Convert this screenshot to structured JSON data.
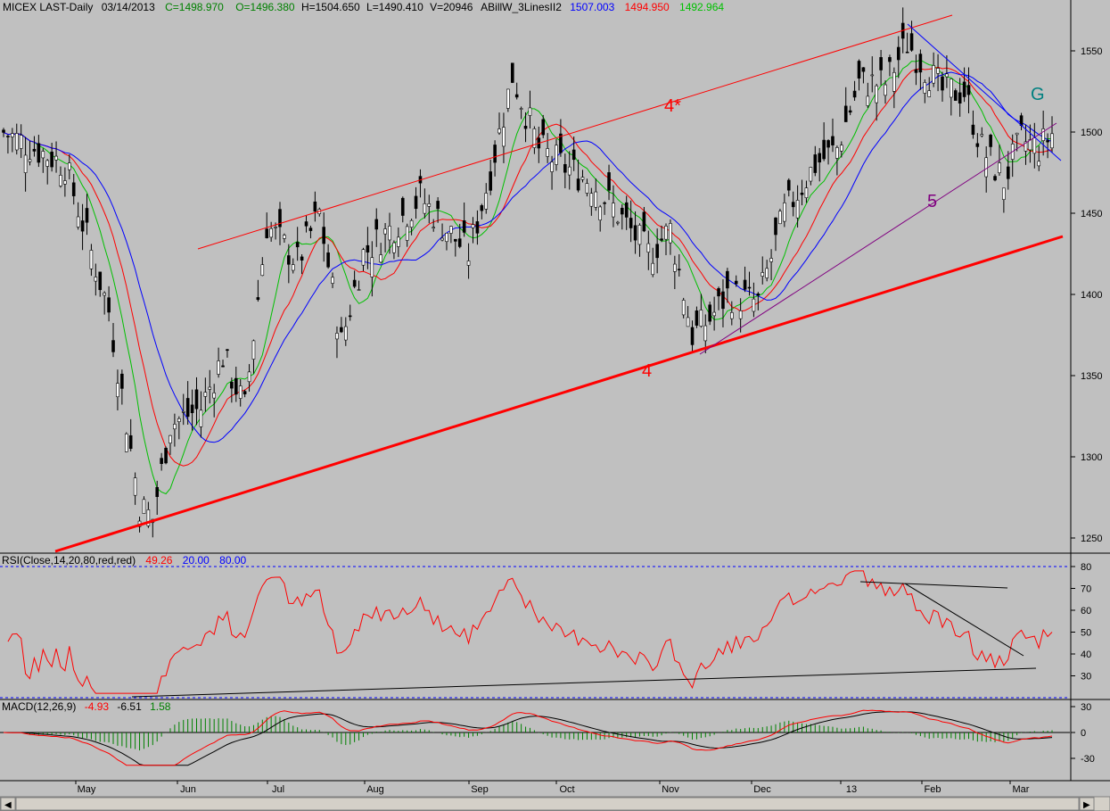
{
  "header": {
    "symbol": "MICEX LAST-Daily",
    "date": "03/14/2013",
    "close": "C=1498.970",
    "open": "O=1496.380",
    "high": "H=1504.650",
    "low": "L=1490.410",
    "volume": "V=20946",
    "indicator": "ABillW_3LinesII2",
    "line_blue": "1507.003",
    "line_red": "1494.950",
    "line_green": "1492.964"
  },
  "colors": {
    "background": "#c0c0c0",
    "line_blue": "#0000ff",
    "line_red": "#ff0000",
    "line_green": "#00c000",
    "annotation_red": "#ff0000",
    "annotation_purple": "#800080",
    "annotation_teal": "#008080",
    "macd_hist": "#008000"
  },
  "chart_data": [
    {
      "type": "candlestick",
      "name": "price",
      "ylim": [
        1230,
        1580
      ],
      "yticks": [
        1250,
        1300,
        1350,
        1400,
        1450,
        1500,
        1550
      ],
      "x_labels": [
        "May",
        "Jun",
        "Jul",
        "Aug",
        "Sep",
        "Oct",
        "Nov",
        "Dec",
        "13",
        "Feb",
        "Mar"
      ],
      "bars_count": 240,
      "close_anchors": [
        [
          0,
          1500
        ],
        [
          14,
          1480
        ],
        [
          24,
          1390
        ],
        [
          31,
          1270
        ],
        [
          34,
          1262
        ],
        [
          38,
          1320
        ],
        [
          45,
          1330
        ],
        [
          50,
          1362
        ],
        [
          55,
          1330
        ],
        [
          60,
          1443
        ],
        [
          67,
          1420
        ],
        [
          72,
          1450
        ],
        [
          77,
          1370
        ],
        [
          82,
          1425
        ],
        [
          90,
          1445
        ],
        [
          95,
          1460
        ],
        [
          101,
          1440
        ],
        [
          106,
          1425
        ],
        [
          111,
          1475
        ],
        [
          116,
          1535
        ],
        [
          122,
          1490
        ],
        [
          127,
          1480
        ],
        [
          134,
          1470
        ],
        [
          140,
          1450
        ],
        [
          147,
          1425
        ],
        [
          152,
          1440
        ],
        [
          157,
          1375
        ],
        [
          161,
          1385
        ],
        [
          165,
          1400
        ],
        [
          172,
          1395
        ],
        [
          178,
          1450
        ],
        [
          185,
          1480
        ],
        [
          190,
          1490
        ],
        [
          195,
          1530
        ],
        [
          201,
          1530
        ],
        [
          206,
          1555
        ],
        [
          210,
          1540
        ],
        [
          214,
          1525
        ],
        [
          219,
          1525
        ],
        [
          223,
          1490
        ],
        [
          228,
          1470
        ],
        [
          232,
          1495
        ],
        [
          236,
          1490
        ],
        [
          239,
          1499
        ]
      ],
      "annotations": [
        {
          "label": "4*",
          "color": "#ff0000"
        },
        {
          "label": "4",
          "color": "#ff0000"
        },
        {
          "label": "5",
          "color": "#800080"
        },
        {
          "label": "G",
          "color": "#008080"
        }
      ]
    },
    {
      "type": "line",
      "name": "RSI",
      "header": "RSI(Close,14,20,80,red,red)",
      "value": "49.26",
      "level_low": "20.00",
      "level_high": "80.00",
      "ylim": [
        20,
        80
      ],
      "yticks": [
        30,
        40,
        50,
        60,
        70,
        80
      ]
    },
    {
      "type": "line",
      "name": "MACD",
      "header": "MACD(12,26,9)",
      "values_text": [
        "-4.93",
        "-6.51",
        "1.58"
      ],
      "ylim": [
        -40,
        30
      ],
      "yticks": [
        -30,
        0,
        30
      ]
    }
  ]
}
